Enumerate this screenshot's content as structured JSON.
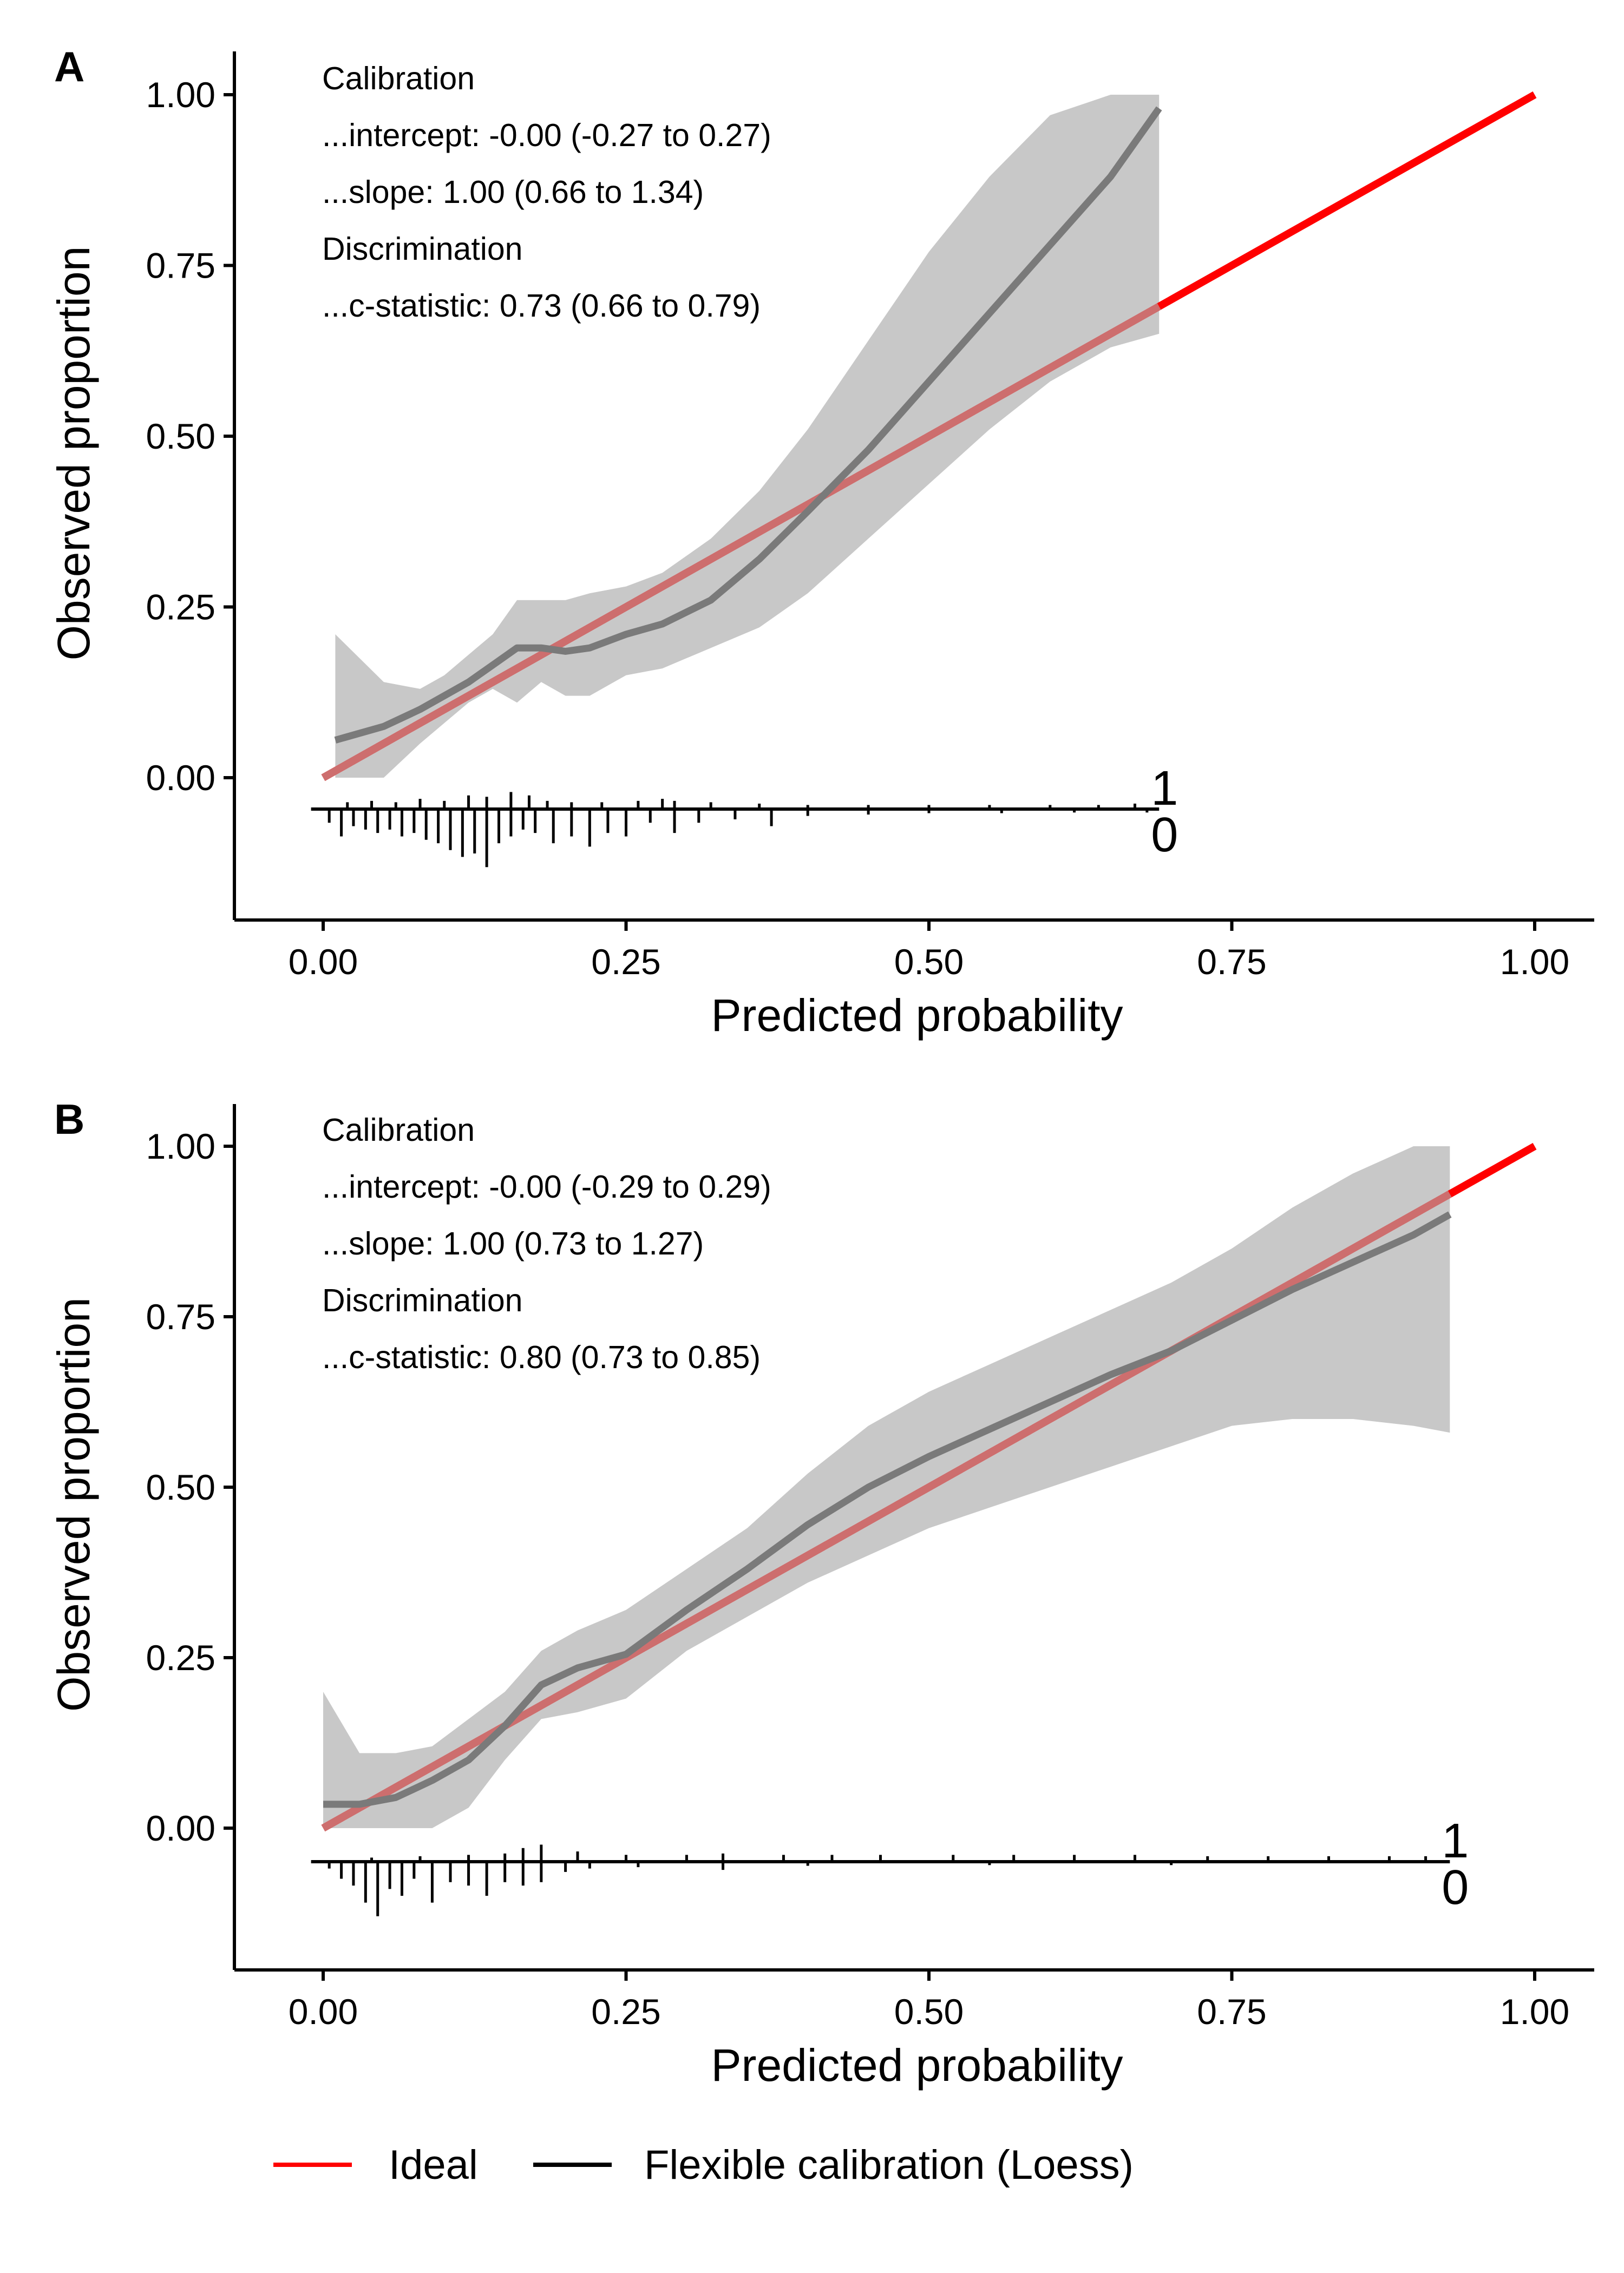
{
  "chart_data": [
    {
      "panel": "A",
      "type": "line",
      "xlabel": "Predicted probability",
      "ylabel": "Observed proportion",
      "xlim": [
        0,
        1
      ],
      "ylim": [
        -0.2,
        1.05
      ],
      "x_ticks": [
        "0.00",
        "0.25",
        "0.50",
        "0.75",
        "1.00"
      ],
      "y_ticks": [
        "0.00",
        "0.25",
        "0.50",
        "0.75",
        "1.00"
      ],
      "annotations": [
        "Calibration",
        "...intercept: -0.00 (-0.27 to 0.27)",
        "...slope: 1.00 (0.66 to 1.34)",
        "Discrimination",
        "...c-statistic: 0.73 (0.66 to 0.79)"
      ],
      "ideal": {
        "x": [
          0,
          1
        ],
        "y": [
          0,
          1
        ]
      },
      "loess": {
        "x": [
          0.01,
          0.05,
          0.08,
          0.1,
          0.12,
          0.14,
          0.16,
          0.18,
          0.2,
          0.22,
          0.25,
          0.28,
          0.32,
          0.36,
          0.4,
          0.45,
          0.5,
          0.55,
          0.6,
          0.65,
          0.69
        ],
        "y": [
          0.055,
          0.075,
          0.1,
          0.12,
          0.14,
          0.165,
          0.19,
          0.19,
          0.185,
          0.19,
          0.21,
          0.225,
          0.26,
          0.32,
          0.39,
          0.48,
          0.58,
          0.68,
          0.78,
          0.88,
          0.98
        ],
        "lower": [
          0.0,
          0.0,
          0.05,
          0.08,
          0.11,
          0.13,
          0.11,
          0.14,
          0.12,
          0.12,
          0.15,
          0.16,
          0.19,
          0.22,
          0.27,
          0.35,
          0.43,
          0.51,
          0.58,
          0.63,
          0.65
        ],
        "upper": [
          0.21,
          0.14,
          0.13,
          0.15,
          0.18,
          0.21,
          0.26,
          0.26,
          0.26,
          0.27,
          0.28,
          0.3,
          0.35,
          0.42,
          0.51,
          0.64,
          0.77,
          0.88,
          0.97,
          1.0,
          1.0
        ]
      },
      "rug_events": [
        {
          "x": 0.02,
          "h": 0.01
        },
        {
          "x": 0.04,
          "h": 0.012
        },
        {
          "x": 0.06,
          "h": 0.01
        },
        {
          "x": 0.08,
          "h": 0.015
        },
        {
          "x": 0.1,
          "h": 0.012
        },
        {
          "x": 0.12,
          "h": 0.02
        },
        {
          "x": 0.135,
          "h": 0.018
        },
        {
          "x": 0.155,
          "h": 0.025
        },
        {
          "x": 0.17,
          "h": 0.02
        },
        {
          "x": 0.185,
          "h": 0.012
        },
        {
          "x": 0.205,
          "h": 0.01
        },
        {
          "x": 0.23,
          "h": 0.01
        },
        {
          "x": 0.26,
          "h": 0.012
        },
        {
          "x": 0.28,
          "h": 0.015
        },
        {
          "x": 0.29,
          "h": 0.012
        },
        {
          "x": 0.32,
          "h": 0.01
        },
        {
          "x": 0.36,
          "h": 0.008
        },
        {
          "x": 0.4,
          "h": 0.006
        },
        {
          "x": 0.45,
          "h": 0.006
        },
        {
          "x": 0.5,
          "h": 0.006
        },
        {
          "x": 0.55,
          "h": 0.006
        },
        {
          "x": 0.6,
          "h": 0.006
        },
        {
          "x": 0.64,
          "h": 0.006
        },
        {
          "x": 0.67,
          "h": 0.008
        }
      ],
      "rug_nonevents": [
        {
          "x": 0.005,
          "h": 0.02
        },
        {
          "x": 0.015,
          "h": 0.04
        },
        {
          "x": 0.025,
          "h": 0.025
        },
        {
          "x": 0.035,
          "h": 0.03
        },
        {
          "x": 0.045,
          "h": 0.035
        },
        {
          "x": 0.055,
          "h": 0.03
        },
        {
          "x": 0.065,
          "h": 0.04
        },
        {
          "x": 0.075,
          "h": 0.035
        },
        {
          "x": 0.085,
          "h": 0.045
        },
        {
          "x": 0.095,
          "h": 0.05
        },
        {
          "x": 0.105,
          "h": 0.06
        },
        {
          "x": 0.115,
          "h": 0.07
        },
        {
          "x": 0.125,
          "h": 0.065
        },
        {
          "x": 0.135,
          "h": 0.085
        },
        {
          "x": 0.145,
          "h": 0.05
        },
        {
          "x": 0.155,
          "h": 0.04
        },
        {
          "x": 0.165,
          "h": 0.03
        },
        {
          "x": 0.175,
          "h": 0.035
        },
        {
          "x": 0.19,
          "h": 0.05
        },
        {
          "x": 0.205,
          "h": 0.04
        },
        {
          "x": 0.22,
          "h": 0.055
        },
        {
          "x": 0.235,
          "h": 0.035
        },
        {
          "x": 0.25,
          "h": 0.04
        },
        {
          "x": 0.27,
          "h": 0.02
        },
        {
          "x": 0.29,
          "h": 0.035
        },
        {
          "x": 0.31,
          "h": 0.02
        },
        {
          "x": 0.34,
          "h": 0.015
        },
        {
          "x": 0.37,
          "h": 0.025
        },
        {
          "x": 0.4,
          "h": 0.01
        },
        {
          "x": 0.45,
          "h": 0.008
        },
        {
          "x": 0.5,
          "h": 0.006
        },
        {
          "x": 0.56,
          "h": 0.006
        },
        {
          "x": 0.62,
          "h": 0.005
        },
        {
          "x": 0.68,
          "h": 0.005
        }
      ],
      "rug_event_label": "1",
      "rug_nonevent_label": "0",
      "rug_end_x": 0.69
    },
    {
      "panel": "B",
      "type": "line",
      "xlabel": "Predicted probability",
      "ylabel": "Observed proportion",
      "xlim": [
        0,
        1
      ],
      "ylim": [
        -0.2,
        1.05
      ],
      "x_ticks": [
        "0.00",
        "0.25",
        "0.50",
        "0.75",
        "1.00"
      ],
      "y_ticks": [
        "0.00",
        "0.25",
        "0.50",
        "0.75",
        "1.00"
      ],
      "annotations": [
        "Calibration",
        "...intercept: -0.00 (-0.29 to 0.29)",
        "...slope: 1.00 (0.73 to 1.27)",
        "Discrimination",
        "...c-statistic: 0.80 (0.73 to 0.85)"
      ],
      "ideal": {
        "x": [
          0,
          1
        ],
        "y": [
          0,
          1
        ]
      },
      "loess": {
        "x": [
          0.0,
          0.03,
          0.06,
          0.09,
          0.12,
          0.15,
          0.18,
          0.21,
          0.25,
          0.3,
          0.35,
          0.4,
          0.45,
          0.5,
          0.55,
          0.6,
          0.65,
          0.7,
          0.75,
          0.8,
          0.85,
          0.9,
          0.93
        ],
        "y": [
          0.035,
          0.035,
          0.045,
          0.07,
          0.1,
          0.15,
          0.21,
          0.235,
          0.255,
          0.32,
          0.38,
          0.445,
          0.5,
          0.545,
          0.585,
          0.625,
          0.665,
          0.7,
          0.745,
          0.79,
          0.83,
          0.87,
          0.9
        ],
        "lower": [
          0.0,
          0.0,
          0.0,
          0.0,
          0.03,
          0.1,
          0.16,
          0.17,
          0.19,
          0.26,
          0.31,
          0.36,
          0.4,
          0.44,
          0.47,
          0.5,
          0.53,
          0.56,
          0.59,
          0.6,
          0.6,
          0.59,
          0.58
        ],
        "upper": [
          0.2,
          0.11,
          0.11,
          0.12,
          0.16,
          0.2,
          0.26,
          0.29,
          0.32,
          0.38,
          0.44,
          0.52,
          0.59,
          0.64,
          0.68,
          0.72,
          0.76,
          0.8,
          0.85,
          0.91,
          0.96,
          1.0,
          1.0
        ]
      },
      "rug_events": [
        {
          "x": 0.04,
          "h": 0.006
        },
        {
          "x": 0.08,
          "h": 0.008
        },
        {
          "x": 0.12,
          "h": 0.01
        },
        {
          "x": 0.15,
          "h": 0.012
        },
        {
          "x": 0.165,
          "h": 0.02
        },
        {
          "x": 0.18,
          "h": 0.025
        },
        {
          "x": 0.21,
          "h": 0.015
        },
        {
          "x": 0.25,
          "h": 0.01
        },
        {
          "x": 0.3,
          "h": 0.01
        },
        {
          "x": 0.33,
          "h": 0.012
        },
        {
          "x": 0.38,
          "h": 0.01
        },
        {
          "x": 0.42,
          "h": 0.01
        },
        {
          "x": 0.46,
          "h": 0.01
        },
        {
          "x": 0.52,
          "h": 0.01
        },
        {
          "x": 0.57,
          "h": 0.01
        },
        {
          "x": 0.62,
          "h": 0.01
        },
        {
          "x": 0.67,
          "h": 0.01
        },
        {
          "x": 0.73,
          "h": 0.008
        },
        {
          "x": 0.78,
          "h": 0.008
        },
        {
          "x": 0.83,
          "h": 0.008
        },
        {
          "x": 0.88,
          "h": 0.008
        },
        {
          "x": 0.91,
          "h": 0.008
        }
      ],
      "rug_nonevents": [
        {
          "x": 0.005,
          "h": 0.01
        },
        {
          "x": 0.015,
          "h": 0.025
        },
        {
          "x": 0.025,
          "h": 0.035
        },
        {
          "x": 0.035,
          "h": 0.06
        },
        {
          "x": 0.045,
          "h": 0.08
        },
        {
          "x": 0.055,
          "h": 0.04
        },
        {
          "x": 0.065,
          "h": 0.05
        },
        {
          "x": 0.075,
          "h": 0.025
        },
        {
          "x": 0.09,
          "h": 0.06
        },
        {
          "x": 0.105,
          "h": 0.03
        },
        {
          "x": 0.12,
          "h": 0.035
        },
        {
          "x": 0.135,
          "h": 0.05
        },
        {
          "x": 0.15,
          "h": 0.03
        },
        {
          "x": 0.165,
          "h": 0.035
        },
        {
          "x": 0.18,
          "h": 0.03
        },
        {
          "x": 0.2,
          "h": 0.015
        },
        {
          "x": 0.22,
          "h": 0.01
        },
        {
          "x": 0.26,
          "h": 0.008
        },
        {
          "x": 0.33,
          "h": 0.012
        },
        {
          "x": 0.4,
          "h": 0.006
        },
        {
          "x": 0.55,
          "h": 0.005
        },
        {
          "x": 0.7,
          "h": 0.005
        }
      ],
      "rug_event_label": "1",
      "rug_nonevent_label": "0",
      "rug_end_x": 0.93
    }
  ],
  "legend": {
    "items": [
      {
        "label": "Ideal",
        "color": "#ff0000"
      },
      {
        "label": "Flexible calibration (Loess)",
        "color": "#000000"
      }
    ]
  },
  "colors": {
    "ideal": "#ff0000",
    "ideal_overlap": "#cd6e6e",
    "loess": "#7a7a7a",
    "band": "#c8c8c8",
    "axis": "#000000"
  }
}
